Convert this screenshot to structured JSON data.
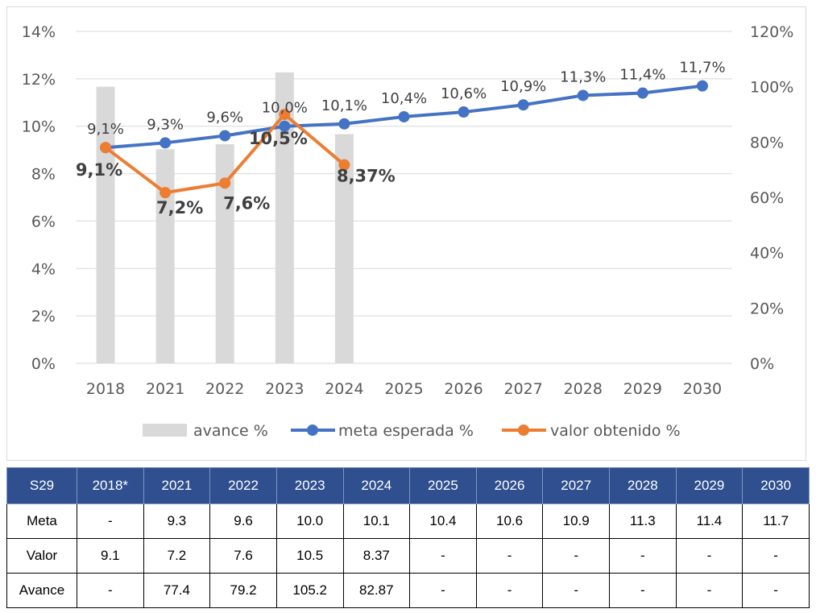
{
  "chart_data": {
    "type": "bar+line",
    "categories": [
      "2018",
      "2021",
      "2022",
      "2023",
      "2024",
      "2025",
      "2026",
      "2027",
      "2028",
      "2029",
      "2030"
    ],
    "left_axis": {
      "ylim": [
        0,
        14
      ],
      "ticks": [
        "0%",
        "2%",
        "4%",
        "6%",
        "8%",
        "10%",
        "12%",
        "14%"
      ]
    },
    "right_axis": {
      "ylim": [
        0,
        120
      ],
      "ticks": [
        "0%",
        "20%",
        "40%",
        "60%",
        "80%",
        "100%",
        "120%"
      ]
    },
    "series": [
      {
        "name": "avance %",
        "type": "bar",
        "axis": "right",
        "color": "#d9d9d9",
        "values": [
          100,
          77.4,
          79.2,
          105.2,
          82.87,
          null,
          null,
          null,
          null,
          null,
          null
        ]
      },
      {
        "name": "meta esperada %",
        "type": "line",
        "axis": "left",
        "color": "#4472c4",
        "values": [
          9.1,
          9.3,
          9.6,
          10.0,
          10.1,
          10.4,
          10.6,
          10.9,
          11.3,
          11.4,
          11.7
        ],
        "labels": [
          "9,1%",
          "9,3%",
          "9,6%",
          "10,0%",
          "10,1%",
          "10,4%",
          "10,6%",
          "10,9%",
          "11,3%",
          "11,4%",
          "11,7%"
        ]
      },
      {
        "name": "valor obtenido %",
        "type": "line",
        "axis": "left",
        "color": "#ed7d31",
        "values": [
          9.1,
          7.2,
          7.6,
          10.5,
          8.37,
          null,
          null,
          null,
          null,
          null,
          null
        ],
        "labels": [
          "9,1%",
          "7,2%",
          "7,6%",
          "10,5%",
          "8,37%"
        ]
      }
    ],
    "legend_position": "bottom",
    "grid": true
  },
  "table": {
    "headers": [
      "S29",
      "2018*",
      "2021",
      "2022",
      "2023",
      "2024",
      "2025",
      "2026",
      "2027",
      "2028",
      "2029",
      "2030"
    ],
    "rows": [
      [
        "Meta",
        "-",
        "9.3",
        "9.6",
        "10.0",
        "10.1",
        "10.4",
        "10.6",
        "10.9",
        "11.3",
        "11.4",
        "11.7"
      ],
      [
        "Valor",
        "9.1",
        "7.2",
        "7.6",
        "10.5",
        "8.37",
        "-",
        "-",
        "-",
        "-",
        "-",
        "-"
      ],
      [
        "Avance",
        "-",
        "77.4",
        "79.2",
        "105.2",
        "82.87",
        "-",
        "-",
        "-",
        "-",
        "-",
        "-"
      ]
    ]
  }
}
